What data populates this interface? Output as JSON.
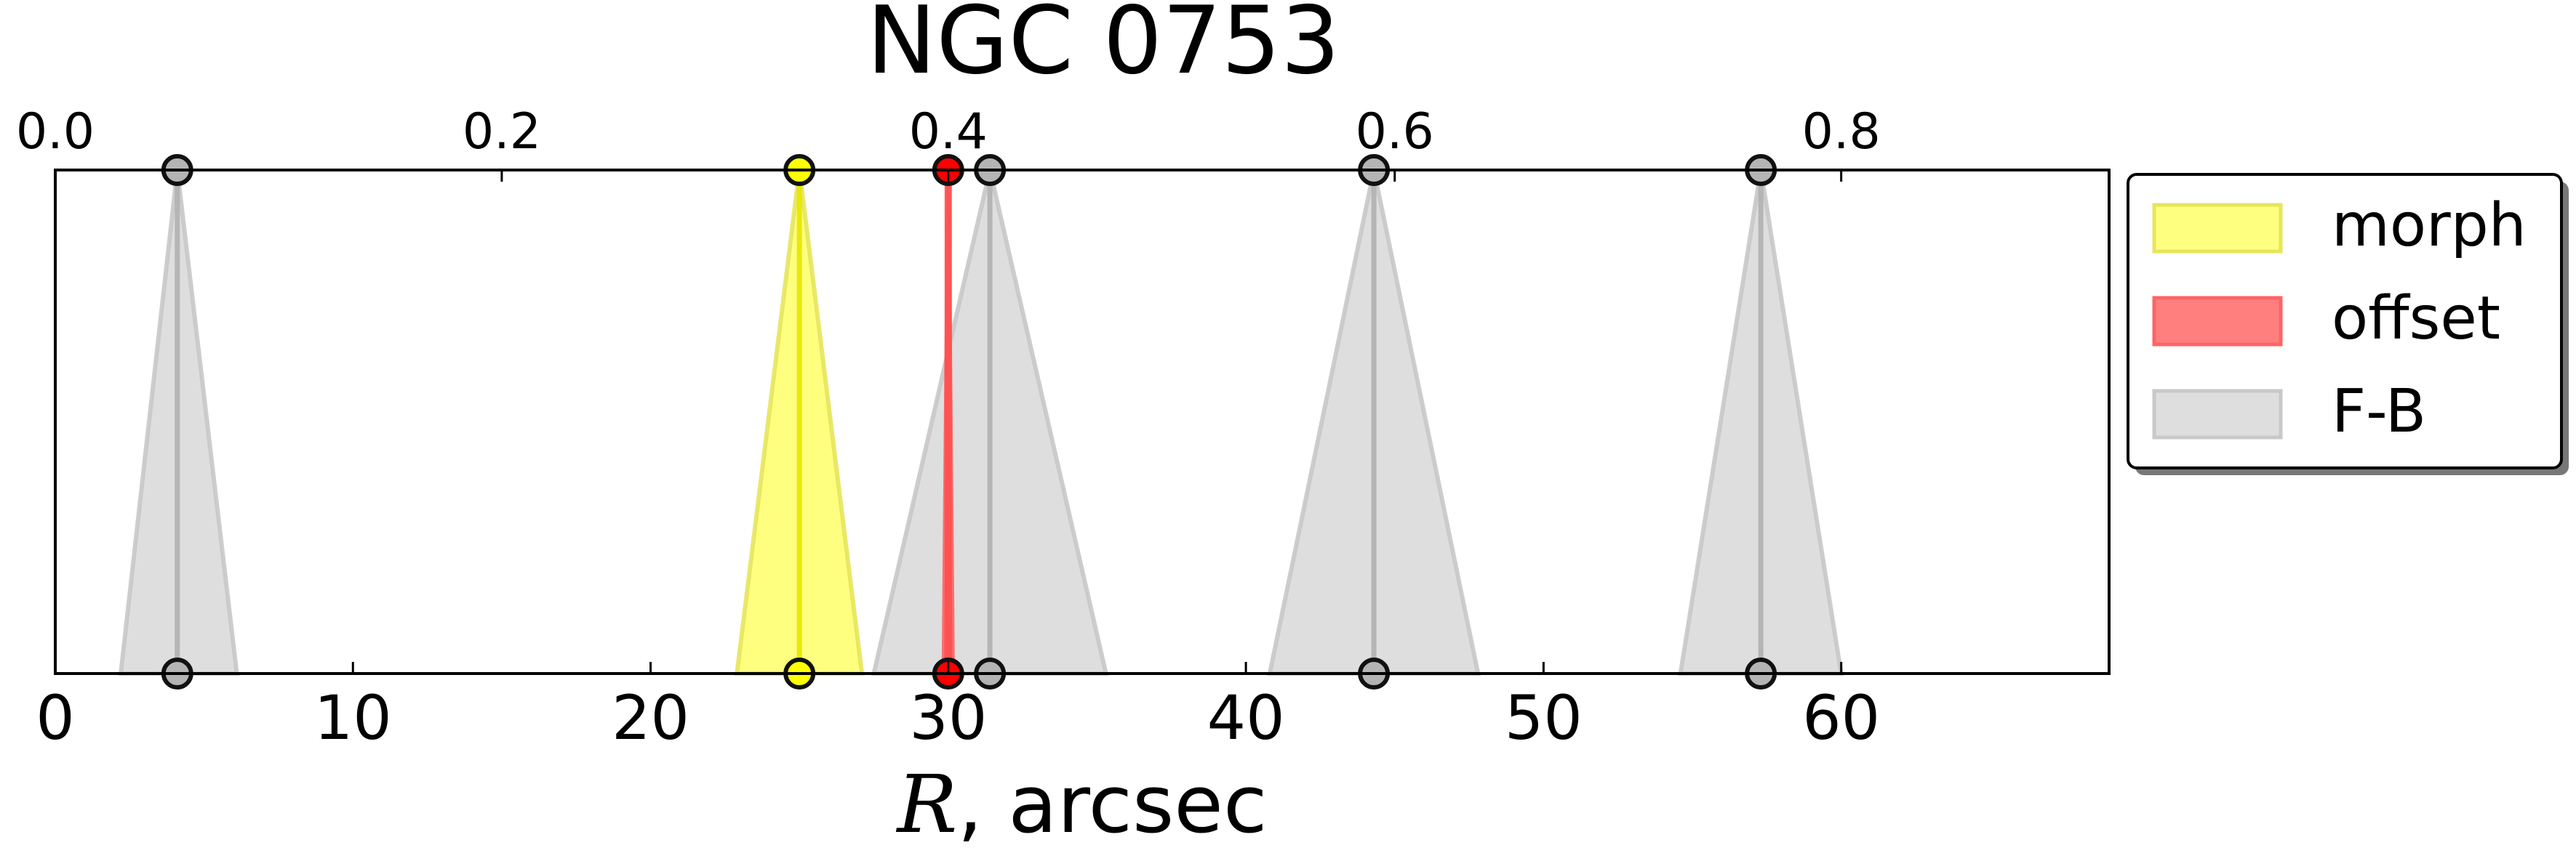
{
  "chart_data": {
    "type": "area",
    "title": "NGC 0753",
    "xlabel_symbol": "R",
    "xlabel_unit": ", arcsec",
    "xlim": [
      0,
      69
    ],
    "xticks": [
      0,
      10,
      20,
      30,
      40,
      50,
      60
    ],
    "top_xlim": [
      0,
      0.92
    ],
    "top_xticks": [
      "0.0",
      "0.2",
      "0.4",
      "0.6",
      "0.8"
    ],
    "grid": false,
    "legend_position": "outside-right",
    "series": [
      {
        "name": "morph",
        "color": "#ffff00",
        "edge": "#e6e65c",
        "marker_fill": "#ffff00",
        "features": [
          {
            "center": 25.0,
            "low": 22.9,
            "high": 27.1
          }
        ]
      },
      {
        "name": "offset",
        "color": "#ff0000",
        "edge": "#ff6464",
        "marker_fill": "#ff0000",
        "features": [
          {
            "center": 30.0,
            "low": 29.85,
            "high": 30.15
          }
        ]
      },
      {
        "name": "F-B",
        "color": "#bdbdbd",
        "edge": "#c8c8c8",
        "marker_fill": "#b4b4b4",
        "features": [
          {
            "center": 4.1,
            "low": 2.2,
            "high": 6.1
          },
          {
            "center": 31.4,
            "low": 27.5,
            "high": 35.3
          },
          {
            "center": 44.3,
            "low": 40.8,
            "high": 47.8
          },
          {
            "center": 57.3,
            "low": 54.6,
            "high": 60.0
          }
        ]
      }
    ]
  }
}
